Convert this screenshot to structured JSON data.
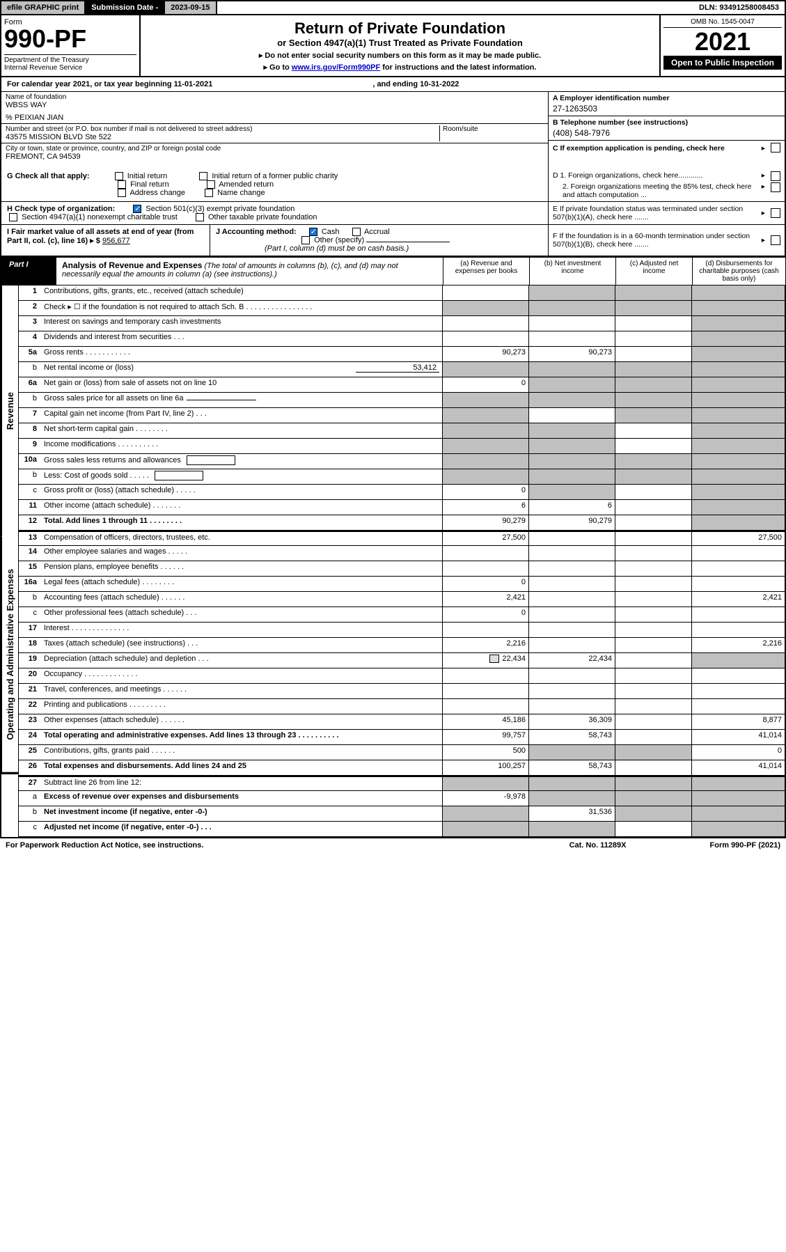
{
  "topbar": {
    "efile": "efile GRAPHIC print",
    "subLabel": "Submission Date - ",
    "subDate": "2023-09-15",
    "dln": "DLN: 93491258008453"
  },
  "header": {
    "formWord": "Form",
    "formNum": "990-PF",
    "dept": "Department of the Treasury\nInternal Revenue Service",
    "title": "Return of Private Foundation",
    "sub1": "or Section 4947(a)(1) Trust Treated as Private Foundation",
    "instr1": "▸ Do not enter social security numbers on this form as it may be made public.",
    "instr2": "▸ Go to ",
    "instrLink": "www.irs.gov/Form990PF",
    "instr3": " for instructions and the latest information.",
    "omb": "OMB No. 1545-0047",
    "year": "2021",
    "open": "Open to Public Inspection"
  },
  "cal": {
    "text": "For calendar year 2021, or tax year beginning 11-01-2021",
    "ending": ", and ending 10-31-2022"
  },
  "entity": {
    "nameLabel": "Name of foundation",
    "name": "WBSS WAY",
    "pct": "% PEIXIAN JIAN",
    "addrLabel": "Number and street (or P.O. box number if mail is not delivered to street address)",
    "addr": "43575 MISSION BLVD Ste 522",
    "room": "Room/suite",
    "cityLabel": "City or town, state or province, country, and ZIP or foreign postal code",
    "city": "FREMONT, CA  94539",
    "A": "A Employer identification number",
    "Aval": "27-1263503",
    "B": "B Telephone number (see instructions)",
    "Bval": "(408) 548-7976",
    "C": "C If exemption application is pending, check here",
    "D1": "D 1. Foreign organizations, check here............",
    "D2": "2. Foreign organizations meeting the 85% test, check here and attach computation ...",
    "E": "E If private foundation status was terminated under section 507(b)(1)(A), check here .......",
    "F": "F  If the foundation is in a 60-month termination under section 507(b)(1)(B), check here ......."
  },
  "G": {
    "label": "G Check all that apply:",
    "opts": [
      "Initial return",
      "Final return",
      "Address change",
      "Initial return of a former public charity",
      "Amended return",
      "Name change"
    ]
  },
  "H": {
    "label": "H Check type of organization:",
    "o1": "Section 501(c)(3) exempt private foundation",
    "o2": "Section 4947(a)(1) nonexempt charitable trust",
    "o3": "Other taxable private foundation"
  },
  "I": {
    "label": "I Fair market value of all assets at end of year (from Part II, col. (c), line 16) ▸ $",
    "val": "956,677"
  },
  "J": {
    "label": "J Accounting method:",
    "o1": "Cash",
    "o2": "Accrual",
    "o3": "Other (specify)",
    "note": "(Part I, column (d) must be on cash basis.)"
  },
  "part": {
    "lbl": "Part I",
    "title": "Analysis of Revenue and Expenses",
    "note": " (The total of amounts in columns (b), (c), and (d) may not necessarily equal the amounts in column (a) (see instructions).)",
    "colA": "(a)   Revenue and expenses per books",
    "colB": "(b)   Net investment income",
    "colC": "(c)   Adjusted net income",
    "colD": "(d)   Disbursements for charitable purposes (cash basis only)"
  },
  "sideLabels": {
    "rev": "Revenue",
    "exp": "Operating and Administrative Expenses"
  },
  "rows": [
    {
      "g": "rev",
      "n": "1",
      "b": 1,
      "d": "Contributions, gifts, grants, etc., received (attach schedule)",
      "A": "",
      "B": "sh",
      "C": "sh",
      "D": "sh"
    },
    {
      "g": "rev",
      "n": "2",
      "b": 1,
      "d": "Check ▸ ☐ if the foundation is not required to attach Sch. B   .  .  .  .  .  .  .  .  .  .  .  .  .  .  .  .",
      "A": "sh",
      "B": "sh",
      "C": "sh",
      "D": "sh"
    },
    {
      "g": "rev",
      "n": "3",
      "b": 1,
      "d": "Interest on savings and temporary cash investments",
      "A": "",
      "B": "",
      "C": "",
      "D": "sh"
    },
    {
      "g": "rev",
      "n": "4",
      "b": 1,
      "d": "Dividends and interest from securities    .   .   .",
      "A": "",
      "B": "",
      "C": "",
      "D": "sh"
    },
    {
      "g": "rev",
      "n": "5a",
      "b": 1,
      "d": "Gross rents    .   .   .   .   .   .   .   .   .   .   .",
      "A": "90,273",
      "B": "90,273",
      "C": "",
      "D": "sh"
    },
    {
      "g": "rev",
      "n": "b",
      "b": 0,
      "d": "Net rental income or (loss)",
      "sub": "53,412",
      "A": "sh",
      "B": "sh",
      "C": "sh",
      "D": "sh"
    },
    {
      "g": "rev",
      "n": "6a",
      "b": 1,
      "d": "Net gain or (loss) from sale of assets not on line 10",
      "A": "0",
      "B": "sh",
      "C": "sh",
      "D": "sh"
    },
    {
      "g": "rev",
      "n": "b",
      "b": 0,
      "d": "Gross sales price for all assets on line 6a",
      "subline": 1,
      "A": "sh",
      "B": "sh",
      "C": "sh",
      "D": "sh"
    },
    {
      "g": "rev",
      "n": "7",
      "b": 1,
      "d": "Capital gain net income (from Part IV, line 2)   .   .   .",
      "A": "sh",
      "B": "",
      "C": "sh",
      "D": "sh"
    },
    {
      "g": "rev",
      "n": "8",
      "b": 1,
      "d": "Net short-term capital gain  .   .   .   .   .   .   .   .",
      "A": "sh",
      "B": "sh",
      "C": "",
      "D": "sh"
    },
    {
      "g": "rev",
      "n": "9",
      "b": 1,
      "d": "Income modifications  .   .   .   .   .   .   .   .   .   .",
      "A": "sh",
      "B": "sh",
      "C": "",
      "D": "sh"
    },
    {
      "g": "rev",
      "n": "10a",
      "b": 1,
      "d": "Gross sales less returns and allowances",
      "box": 1,
      "A": "sh",
      "B": "sh",
      "C": "sh",
      "D": "sh"
    },
    {
      "g": "rev",
      "n": "b",
      "b": 0,
      "d": "Less: Cost of goods sold    .   .   .   .   .",
      "box": 1,
      "A": "sh",
      "B": "sh",
      "C": "sh",
      "D": "sh"
    },
    {
      "g": "rev",
      "n": "c",
      "b": 0,
      "d": "Gross profit or (loss) (attach schedule)    .   .   .   .   .",
      "A": "0",
      "B": "sh",
      "C": "",
      "D": "sh"
    },
    {
      "g": "rev",
      "n": "11",
      "b": 1,
      "d": "Other income (attach schedule)    .   .   .   .   .   .   .",
      "A": "6",
      "B": "6",
      "C": "",
      "D": "sh"
    },
    {
      "g": "rev",
      "n": "12",
      "b": 1,
      "d": "Total. Add lines 1 through 11   .   .   .   .   .   .   .   .",
      "bd": 1,
      "A": "90,279",
      "B": "90,279",
      "C": "",
      "D": "sh"
    },
    {
      "g": "exp",
      "n": "13",
      "b": 1,
      "d": "Compensation of officers, directors, trustees, etc.",
      "A": "27,500",
      "B": "",
      "C": "",
      "D": "27,500"
    },
    {
      "g": "exp",
      "n": "14",
      "b": 1,
      "d": "Other employee salaries and wages    .   .   .   .   .",
      "A": "",
      "B": "",
      "C": "",
      "D": ""
    },
    {
      "g": "exp",
      "n": "15",
      "b": 1,
      "d": "Pension plans, employee benefits  .   .   .   .   .   .",
      "A": "",
      "B": "",
      "C": "",
      "D": ""
    },
    {
      "g": "exp",
      "n": "16a",
      "b": 1,
      "d": "Legal fees (attach schedule)  .   .   .   .   .   .   .   .",
      "A": "0",
      "B": "",
      "C": "",
      "D": ""
    },
    {
      "g": "exp",
      "n": "b",
      "b": 0,
      "d": "Accounting fees (attach schedule)  .   .   .   .   .   .",
      "A": "2,421",
      "B": "",
      "C": "",
      "D": "2,421"
    },
    {
      "g": "exp",
      "n": "c",
      "b": 0,
      "d": "Other professional fees (attach schedule)    .   .   .",
      "A": "0",
      "B": "",
      "C": "",
      "D": ""
    },
    {
      "g": "exp",
      "n": "17",
      "b": 1,
      "d": "Interest  .   .   .   .   .   .   .   .   .   .   .   .   .   .",
      "A": "",
      "B": "",
      "C": "",
      "D": ""
    },
    {
      "g": "exp",
      "n": "18",
      "b": 1,
      "d": "Taxes (attach schedule) (see instructions)    .   .   .",
      "A": "2,216",
      "B": "",
      "C": "",
      "D": "2,216"
    },
    {
      "g": "exp",
      "n": "19",
      "b": 1,
      "d": "Depreciation (attach schedule) and depletion    .   .   .",
      "icon": 1,
      "A": "22,434",
      "B": "22,434",
      "C": "",
      "D": "sh"
    },
    {
      "g": "exp",
      "n": "20",
      "b": 1,
      "d": "Occupancy  .   .   .   .   .   .   .   .   .   .   .   .   .",
      "A": "",
      "B": "",
      "C": "",
      "D": ""
    },
    {
      "g": "exp",
      "n": "21",
      "b": 1,
      "d": "Travel, conferences, and meetings  .   .   .   .   .   .",
      "A": "",
      "B": "",
      "C": "",
      "D": ""
    },
    {
      "g": "exp",
      "n": "22",
      "b": 1,
      "d": "Printing and publications  .   .   .   .   .   .   .   .   .",
      "A": "",
      "B": "",
      "C": "",
      "D": ""
    },
    {
      "g": "exp",
      "n": "23",
      "b": 1,
      "d": "Other expenses (attach schedule)  .   .   .   .   .   .",
      "A": "45,186",
      "B": "36,309",
      "C": "",
      "D": "8,877"
    },
    {
      "g": "exp",
      "n": "24",
      "b": 1,
      "d": "Total operating and administrative expenses. Add lines 13 through 23   .  .  .  .  .  .  .  .  .  .",
      "bd": 1,
      "A": "99,757",
      "B": "58,743",
      "C": "",
      "D": "41,014"
    },
    {
      "g": "exp",
      "n": "25",
      "b": 1,
      "d": "Contributions, gifts, grants paid    .   .   .   .   .   .",
      "A": "500",
      "B": "sh",
      "C": "sh",
      "D": "0"
    },
    {
      "g": "exp",
      "n": "26",
      "b": 1,
      "d": "Total expenses and disbursements. Add lines 24 and 25",
      "bd": 1,
      "A": "100,257",
      "B": "58,743",
      "C": "",
      "D": "41,014"
    },
    {
      "g": "end",
      "n": "27",
      "b": 1,
      "d": "Subtract line 26 from line 12:",
      "A": "sh",
      "B": "sh",
      "C": "sh",
      "D": "sh"
    },
    {
      "g": "end",
      "n": "a",
      "b": 0,
      "d": "Excess of revenue over expenses and disbursements",
      "bd": 1,
      "A": "-9,978",
      "B": "sh",
      "C": "sh",
      "D": "sh"
    },
    {
      "g": "end",
      "n": "b",
      "b": 0,
      "d": "Net investment income (if negative, enter -0-)",
      "bd": 1,
      "A": "sh",
      "B": "31,536",
      "C": "sh",
      "D": "sh"
    },
    {
      "g": "end",
      "n": "c",
      "b": 0,
      "d": "Adjusted net income (if negative, enter -0-)   .   .   .",
      "bd": 1,
      "A": "sh",
      "B": "sh",
      "C": "",
      "D": "sh"
    }
  ],
  "foot": {
    "l": "For Paperwork Reduction Act Notice, see instructions.",
    "c": "Cat. No. 11289X",
    "r": "Form 990-PF (2021)"
  }
}
